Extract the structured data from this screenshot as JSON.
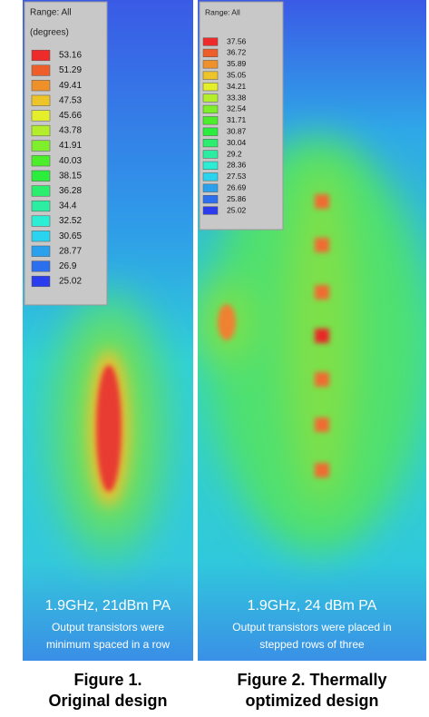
{
  "figures": [
    {
      "legend": {
        "range": "Range: All",
        "unit": "(degrees)",
        "values": [
          53.16,
          51.29,
          49.41,
          47.53,
          45.66,
          43.78,
          41.91,
          40.03,
          38.15,
          36.28,
          34.4,
          32.52,
          30.65,
          28.77,
          26.9,
          25.02
        ]
      },
      "heading": "1.9GHz, 21dBm PA",
      "note": [
        "Output transistors were",
        "minimum spaced in a row"
      ],
      "caption": [
        "Figure 1.",
        "Original design"
      ]
    },
    {
      "legend": {
        "range": "Range: All",
        "values": [
          37.56,
          36.72,
          35.89,
          35.05,
          34.21,
          33.38,
          32.54,
          31.71,
          30.87,
          30.04,
          29.2,
          28.36,
          27.53,
          26.69,
          25.86,
          25.02
        ]
      },
      "heading": "1.9GHz, 24 dBm PA",
      "note": [
        "Output transistors were placed in",
        "stepped rows of three"
      ],
      "caption": [
        "Figure 2. Thermally",
        "optimized design"
      ]
    }
  ]
}
